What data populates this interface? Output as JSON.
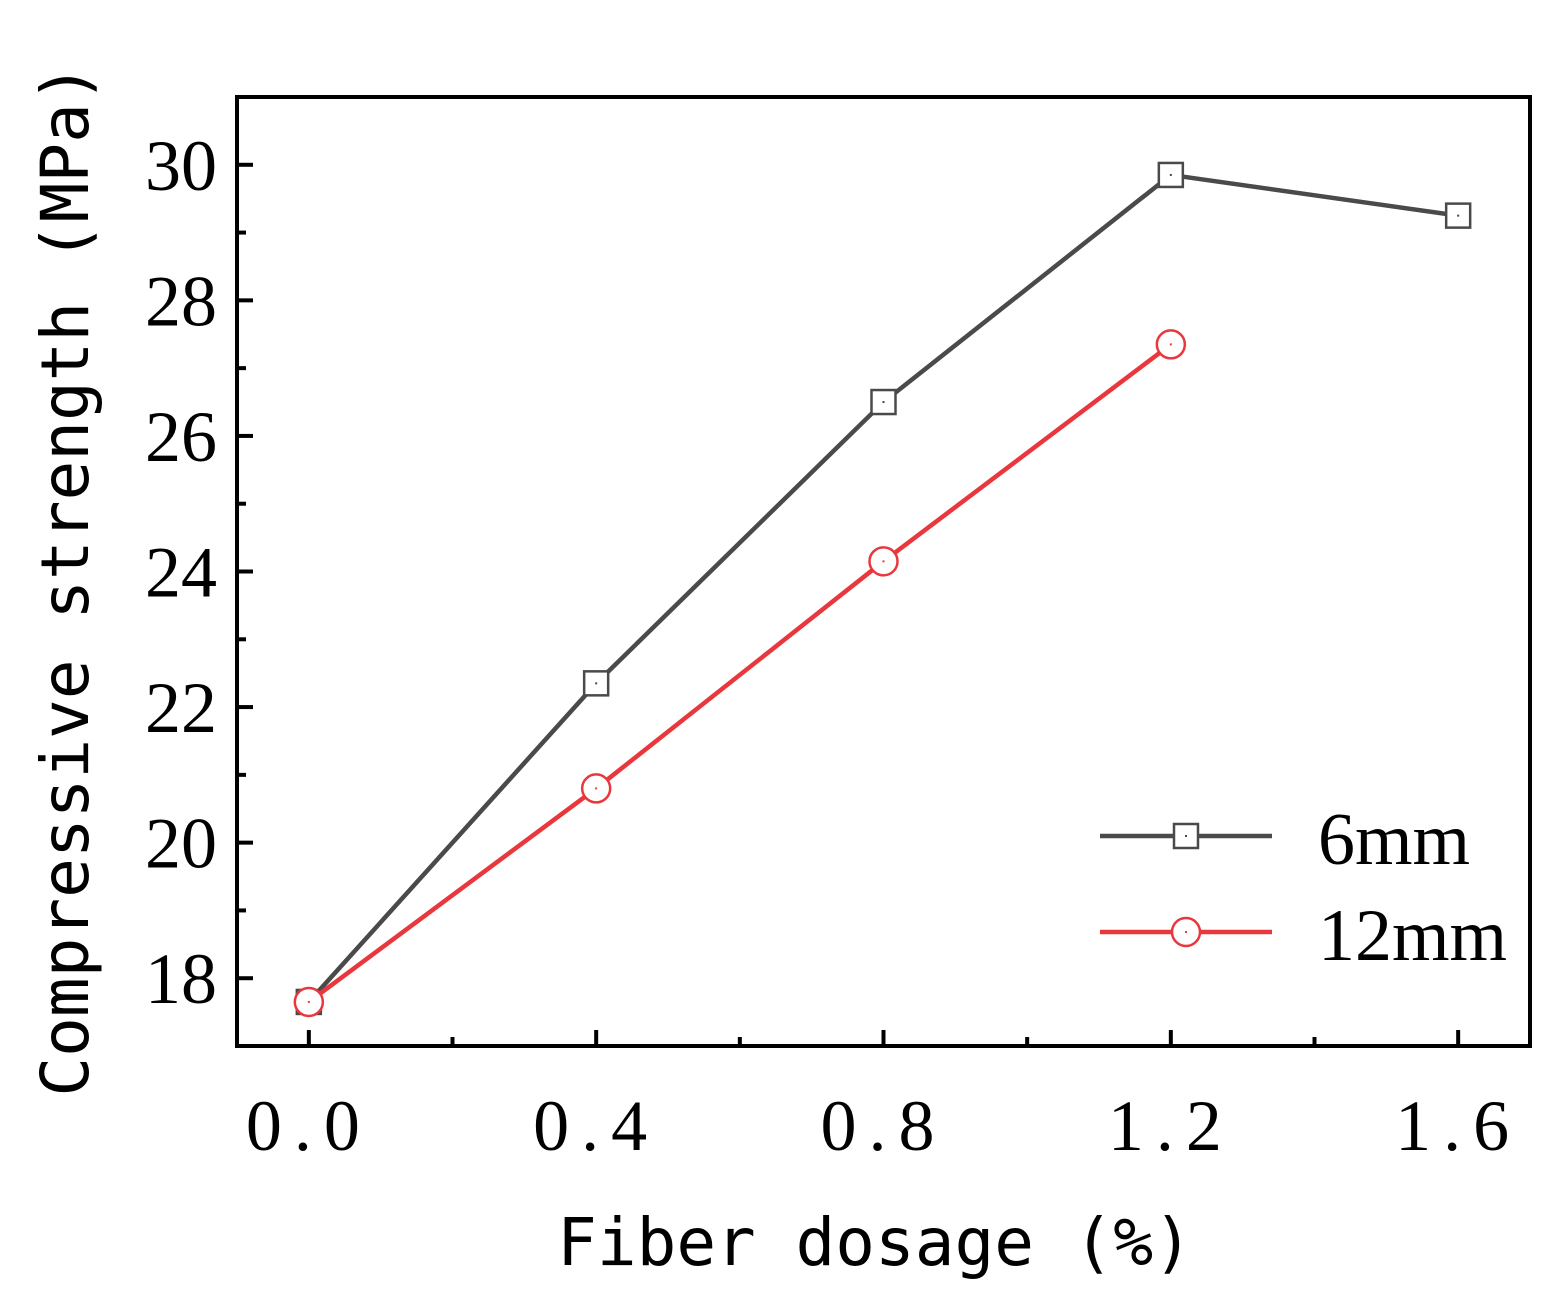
{
  "chart_data": {
    "type": "line",
    "title": "",
    "xlabel": "Fiber dosage (%)",
    "ylabel": "Compressive strength (MPa)",
    "xlim": [
      -0.1,
      1.7
    ],
    "ylim": [
      17.0,
      31.0
    ],
    "xticks": [
      0.0,
      0.4,
      0.8,
      1.2,
      1.6
    ],
    "xtick_labels": [
      "0.0",
      "0.4",
      "0.8",
      "1.2",
      "1.6"
    ],
    "xminor": [
      0.2,
      0.6,
      1.0,
      1.4
    ],
    "yticks": [
      18,
      20,
      22,
      24,
      26,
      28,
      30
    ],
    "ytick_labels": [
      "18",
      "20",
      "22",
      "24",
      "26",
      "28",
      "30"
    ],
    "yminor": [
      19,
      21,
      23,
      25,
      27,
      29
    ],
    "legend_position": "bottom-right",
    "series": [
      {
        "name": "6mm",
        "marker": "square",
        "color": "#4a4a4a",
        "x": [
          0.0,
          0.4,
          0.8,
          1.2,
          1.6
        ],
        "values": [
          17.65,
          22.35,
          26.5,
          29.85,
          29.25
        ]
      },
      {
        "name": "12mm",
        "marker": "circle",
        "color": "#e8383d",
        "x": [
          0.0,
          0.4,
          0.8,
          1.2
        ],
        "values": [
          17.65,
          20.8,
          24.15,
          27.35
        ]
      }
    ]
  }
}
